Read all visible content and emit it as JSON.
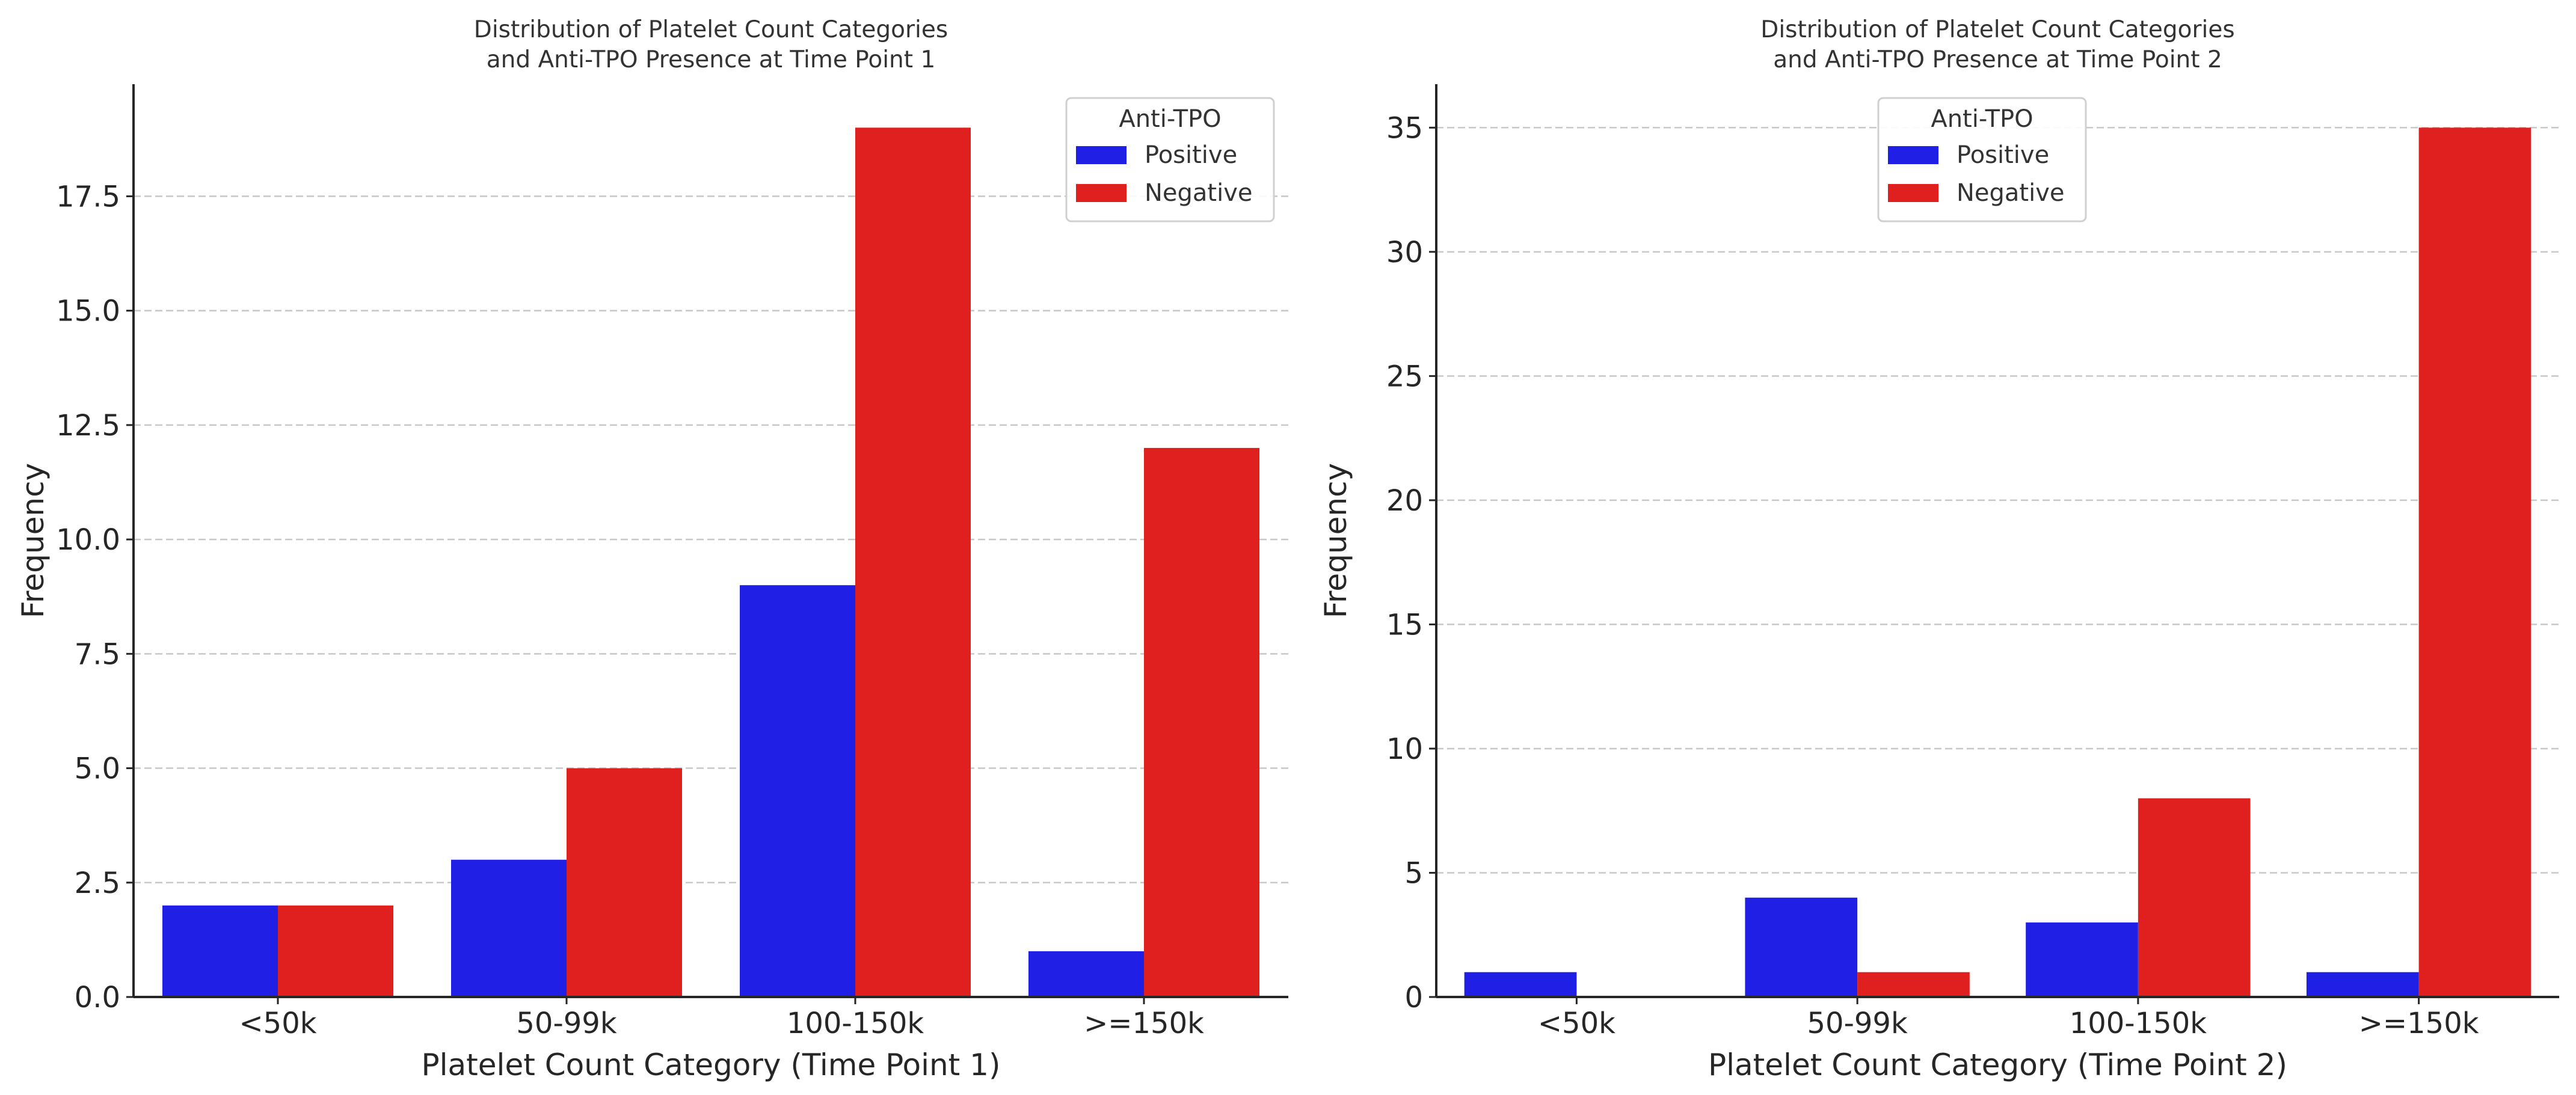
{
  "chart_data": [
    {
      "type": "bar",
      "title": "Distribution of Platelet Count Categories\nand Anti-TPO Presence at Time Point 1",
      "xlabel": "Platelet Count Category (Time Point 1)",
      "ylabel": "Frequency",
      "categories": [
        "<50k",
        "50-99k",
        "100-150k",
        ">=150k"
      ],
      "ylim": [
        0,
        19.95
      ],
      "yticks": [
        0,
        2.5,
        5,
        7.5,
        10,
        12.5,
        15,
        17.5
      ],
      "ytick_labels": [
        "0.0",
        "2.5",
        "5.0",
        "7.5",
        "10.0",
        "12.5",
        "15.0",
        "17.5"
      ],
      "grid": true,
      "legend": {
        "title": "Anti-TPO",
        "position": "top-right"
      },
      "series": [
        {
          "name": "Positive",
          "color": "#1f1fe6",
          "values": [
            2,
            3,
            9,
            1
          ]
        },
        {
          "name": "Negative",
          "color": "#e01f1f",
          "values": [
            2,
            5,
            19,
            12
          ]
        }
      ]
    },
    {
      "type": "bar",
      "title": "Distribution of Platelet Count Categories\nand Anti-TPO Presence at Time Point 2",
      "xlabel": "Platelet Count Category (Time Point 2)",
      "ylabel": "Frequency",
      "categories": [
        "<50k",
        "50-99k",
        "100-150k",
        ">=150k"
      ],
      "ylim": [
        0,
        36.75
      ],
      "yticks": [
        0,
        5,
        10,
        15,
        20,
        25,
        30,
        35
      ],
      "ytick_labels": [
        "0",
        "5",
        "10",
        "15",
        "20",
        "25",
        "30",
        "35"
      ],
      "grid": true,
      "legend": {
        "title": "Anti-TPO",
        "position": "top-center"
      },
      "series": [
        {
          "name": "Positive",
          "color": "#1f1fe6",
          "values": [
            1,
            4,
            3,
            1
          ]
        },
        {
          "name": "Negative",
          "color": "#e01f1f",
          "values": [
            0,
            1,
            8,
            35
          ]
        }
      ]
    }
  ]
}
